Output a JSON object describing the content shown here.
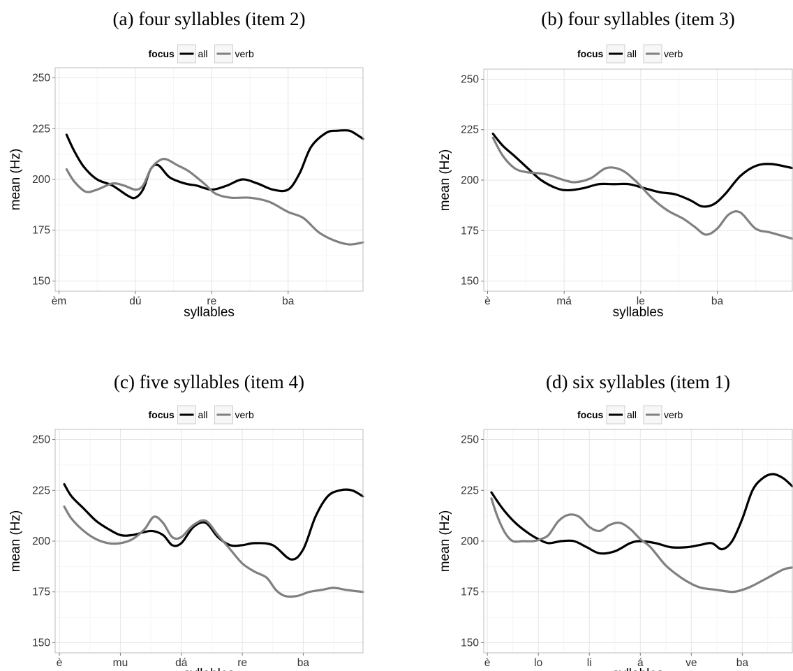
{
  "chart_data": [
    {
      "type": "line",
      "title": "(a) four syllables (item 2)",
      "xlabel": "syllables",
      "ylabel": "mean (Hz)",
      "ylim": [
        145,
        255
      ],
      "yticks": [
        150,
        175,
        200,
        225,
        250
      ],
      "xticks": [
        "èm",
        "dú",
        "re",
        "ba"
      ],
      "xlim": [
        -0.05,
        3.98
      ],
      "grid": true,
      "legend": {
        "title": "focus",
        "position": "top",
        "entries": [
          "all",
          "verb"
        ]
      },
      "series": [
        {
          "name": "all",
          "color": "#000000",
          "x": [
            0.1,
            0.2,
            0.33,
            0.5,
            0.7,
            0.9,
            1.0,
            1.1,
            1.2,
            1.3,
            1.45,
            1.65,
            1.8,
            2.0,
            2.2,
            2.4,
            2.6,
            2.8,
            3.0,
            3.15,
            3.3,
            3.5,
            3.65,
            3.8,
            3.9,
            3.98
          ],
          "y": [
            222,
            214,
            206,
            200,
            197,
            192,
            191,
            195,
            205,
            207,
            201,
            198,
            197,
            195,
            197,
            200,
            198,
            195,
            195,
            203,
            216,
            223,
            224,
            224,
            222,
            220
          ]
        },
        {
          "name": "verb",
          "color": "#808080",
          "x": [
            0.1,
            0.2,
            0.35,
            0.5,
            0.7,
            0.85,
            1.0,
            1.1,
            1.2,
            1.3,
            1.4,
            1.55,
            1.7,
            1.9,
            2.05,
            2.25,
            2.5,
            2.75,
            3.0,
            3.2,
            3.4,
            3.6,
            3.8,
            3.98
          ],
          "y": [
            205,
            199,
            194,
            195,
            198,
            197,
            195,
            197,
            205,
            209,
            210,
            207,
            204,
            198,
            193,
            191,
            191,
            189,
            184,
            181,
            174,
            170,
            168,
            169
          ]
        }
      ]
    },
    {
      "type": "line",
      "title": "(b) four syllables (item 3)",
      "xlabel": "syllables",
      "ylabel": "mean (Hz)",
      "ylim": [
        145,
        255
      ],
      "yticks": [
        150,
        175,
        200,
        225,
        250
      ],
      "xticks": [
        "è",
        "má",
        "le",
        "ba"
      ],
      "xlim": [
        -0.05,
        3.98
      ],
      "grid": true,
      "legend": {
        "title": "focus",
        "position": "top",
        "entries": [
          "all",
          "verb"
        ]
      },
      "series": [
        {
          "name": "all",
          "color": "#000000",
          "x": [
            0.07,
            0.2,
            0.35,
            0.55,
            0.7,
            0.9,
            1.05,
            1.25,
            1.45,
            1.65,
            1.85,
            2.05,
            2.25,
            2.45,
            2.65,
            2.8,
            2.95,
            3.1,
            3.3,
            3.5,
            3.7,
            3.98
          ],
          "y": [
            223,
            217,
            212,
            205,
            200,
            196,
            195,
            196,
            198,
            198,
            198,
            196,
            194,
            193,
            190,
            187,
            188,
            193,
            202,
            207,
            208,
            206
          ]
        },
        {
          "name": "verb",
          "color": "#808080",
          "x": [
            0.07,
            0.2,
            0.35,
            0.5,
            0.75,
            1.0,
            1.15,
            1.35,
            1.55,
            1.75,
            1.95,
            2.15,
            2.35,
            2.55,
            2.7,
            2.85,
            3.0,
            3.15,
            3.3,
            3.5,
            3.7,
            3.98
          ],
          "y": [
            221,
            212,
            206,
            204,
            203,
            200,
            199,
            201,
            206,
            205,
            199,
            191,
            185,
            181,
            177,
            173,
            176,
            183,
            184,
            176,
            174,
            171
          ]
        }
      ]
    },
    {
      "type": "line",
      "title": "(c) five syllables (item 4)",
      "xlabel": "syllables",
      "ylabel": "mean (Hz)",
      "ylim": [
        145,
        255
      ],
      "yticks": [
        150,
        175,
        200,
        225,
        250
      ],
      "xticks": [
        "è",
        "mu",
        "dá",
        "re",
        "ba"
      ],
      "xlim": [
        -0.07,
        4.98
      ],
      "grid": true,
      "legend": {
        "title": "focus",
        "position": "top",
        "entries": [
          "all",
          "verb"
        ]
      },
      "series": [
        {
          "name": "all",
          "color": "#000000",
          "x": [
            0.08,
            0.2,
            0.4,
            0.6,
            0.8,
            1.0,
            1.2,
            1.5,
            1.7,
            1.85,
            2.0,
            2.2,
            2.4,
            2.6,
            2.8,
            3.0,
            3.2,
            3.5,
            3.8,
            4.0,
            4.2,
            4.4,
            4.6,
            4.8,
            4.98
          ],
          "y": [
            228,
            222,
            216,
            210,
            206,
            203,
            203,
            205,
            203,
            198,
            199,
            207,
            209,
            202,
            198,
            198,
            199,
            198,
            191,
            196,
            212,
            222,
            225,
            225,
            222
          ]
        },
        {
          "name": "verb",
          "color": "#808080",
          "x": [
            0.08,
            0.2,
            0.4,
            0.6,
            0.8,
            1.0,
            1.2,
            1.4,
            1.55,
            1.7,
            1.85,
            2.0,
            2.2,
            2.4,
            2.6,
            2.8,
            3.0,
            3.2,
            3.4,
            3.55,
            3.7,
            3.9,
            4.1,
            4.3,
            4.5,
            4.7,
            4.98
          ],
          "y": [
            217,
            211,
            205,
            201,
            199,
            199,
            201,
            206,
            212,
            209,
            202,
            202,
            208,
            210,
            203,
            196,
            189,
            185,
            182,
            176,
            173,
            173,
            175,
            176,
            177,
            176,
            175
          ]
        }
      ]
    },
    {
      "type": "line",
      "title": "(d) six syllables (item 1)",
      "xlabel": "syllables",
      "ylabel": "mean (Hz)",
      "ylim": [
        145,
        255
      ],
      "yticks": [
        150,
        175,
        200,
        225,
        250
      ],
      "xticks": [
        "è",
        "lo",
        "li",
        "á",
        "ve",
        "ba"
      ],
      "xlim": [
        -0.07,
        5.98
      ],
      "grid": true,
      "legend": {
        "title": "focus",
        "position": "top",
        "entries": [
          "all",
          "verb"
        ]
      },
      "series": [
        {
          "name": "all",
          "color": "#000000",
          "x": [
            0.08,
            0.3,
            0.55,
            0.8,
            1.0,
            1.2,
            1.45,
            1.7,
            1.95,
            2.2,
            2.5,
            2.8,
            3.0,
            3.3,
            3.6,
            3.9,
            4.15,
            4.4,
            4.6,
            4.8,
            5.0,
            5.2,
            5.4,
            5.6,
            5.8,
            5.98
          ],
          "y": [
            224,
            216,
            209,
            204,
            201,
            199,
            200,
            200,
            197,
            194,
            195,
            199,
            200,
            199,
            197,
            197,
            198,
            199,
            196,
            200,
            211,
            225,
            231,
            233,
            231,
            227
          ]
        },
        {
          "name": "verb",
          "color": "#808080",
          "x": [
            0.08,
            0.2,
            0.35,
            0.5,
            0.7,
            0.9,
            1.05,
            1.2,
            1.4,
            1.6,
            1.8,
            2.0,
            2.2,
            2.4,
            2.6,
            2.8,
            3.0,
            3.2,
            3.5,
            3.8,
            4.0,
            4.2,
            4.5,
            4.8,
            5.0,
            5.2,
            5.5,
            5.8,
            5.98
          ],
          "y": [
            221,
            212,
            204,
            200,
            200,
            200,
            201,
            203,
            210,
            213,
            212,
            207,
            205,
            208,
            209,
            206,
            201,
            197,
            188,
            182,
            179,
            177,
            176,
            175,
            176,
            178,
            182,
            186,
            187
          ]
        }
      ]
    }
  ]
}
